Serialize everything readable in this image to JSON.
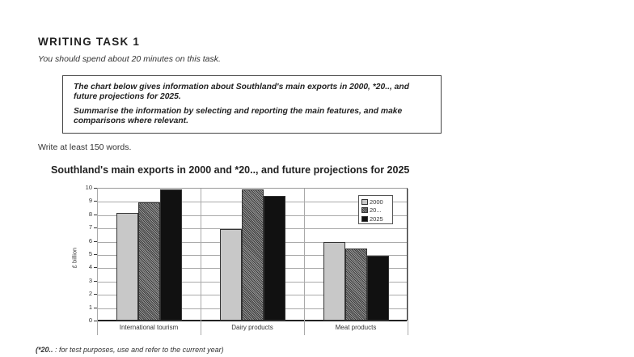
{
  "task": {
    "heading": "WRITING TASK 1",
    "time_instruction": "You should spend about 20 minutes on this task.",
    "prompt_line1": "The chart below gives information about Southland's main exports in 2000, *20.., and future projections for 2025.",
    "prompt_line2": "Summarise the information by selecting and reporting the main features, and make comparisons where relevant.",
    "word_requirement": "Write at least 150 words.",
    "footnote_prefix": "(*20..",
    "footnote_text": " : for test purposes, use and refer to the current year)"
  },
  "chart_data": {
    "type": "bar",
    "title": "Southland's main exports in 2000 and *20.., and future projections for 2025",
    "xlabel": "",
    "ylabel": "£ billion",
    "ylim": [
      0,
      10
    ],
    "yticks": [
      "0",
      "1",
      "2",
      "3",
      "4",
      "5",
      "6",
      "7",
      "8",
      "9",
      "10"
    ],
    "grid": true,
    "legend_position": "upper right (inside plot)",
    "categories": [
      "International tourism",
      "Dairy products",
      "Meat products"
    ],
    "series": [
      {
        "name": "2000",
        "pattern": "light dotted grey",
        "color": "#d4d4d4",
        "values": [
          8.1,
          6.9,
          5.9
        ]
      },
      {
        "name": "20...",
        "pattern": "dark hatched grey",
        "color": "#6a6a6a",
        "values": [
          8.9,
          9.9,
          5.4
        ]
      },
      {
        "name": "2025",
        "pattern": "solid black",
        "color": "#111111",
        "values": [
          9.9,
          9.4,
          4.9
        ]
      }
    ]
  }
}
